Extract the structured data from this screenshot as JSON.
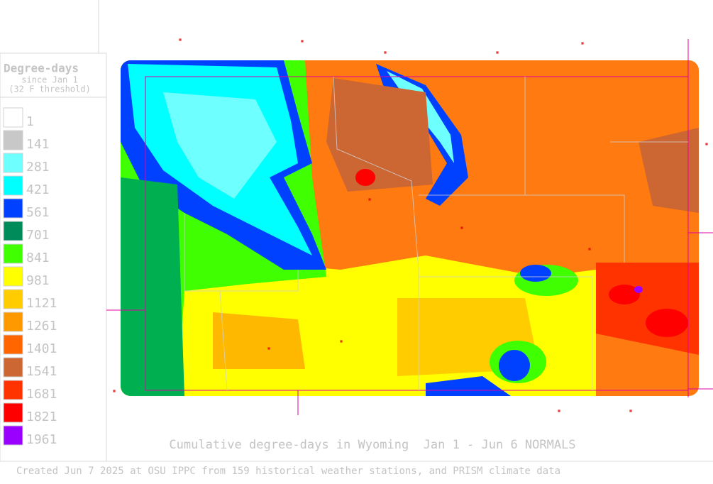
{
  "legend": {
    "title": "Degree-days",
    "subtitle": "since Jan 1",
    "threshold": "(32 F threshold)",
    "items": [
      {
        "label": "1",
        "color": "#ffffff"
      },
      {
        "label": "141",
        "color": "#c8c8c8"
      },
      {
        "label": "281",
        "color": "#6effff"
      },
      {
        "label": "421",
        "color": "#00ffff"
      },
      {
        "label": "561",
        "color": "#0040ff"
      },
      {
        "label": "701",
        "color": "#008c5a"
      },
      {
        "label": "841",
        "color": "#40ff00"
      },
      {
        "label": "981",
        "color": "#ffff00"
      },
      {
        "label": "1121",
        "color": "#ffcc00"
      },
      {
        "label": "1261",
        "color": "#ff9900"
      },
      {
        "label": "1401",
        "color": "#ff6600"
      },
      {
        "label": "1541",
        "color": "#cc6633"
      },
      {
        "label": "1681",
        "color": "#ff3300"
      },
      {
        "label": "1821",
        "color": "#ff0000"
      },
      {
        "label": "1961",
        "color": "#9900ff"
      }
    ]
  },
  "map_title": "Cumulative degree-days in Wyoming  Jan 1 - Jun 6 NORMALS",
  "footer": "Created Jun 7 2025 at OSU IPPC from 159 historical weather stations, and PRISM climate data"
}
